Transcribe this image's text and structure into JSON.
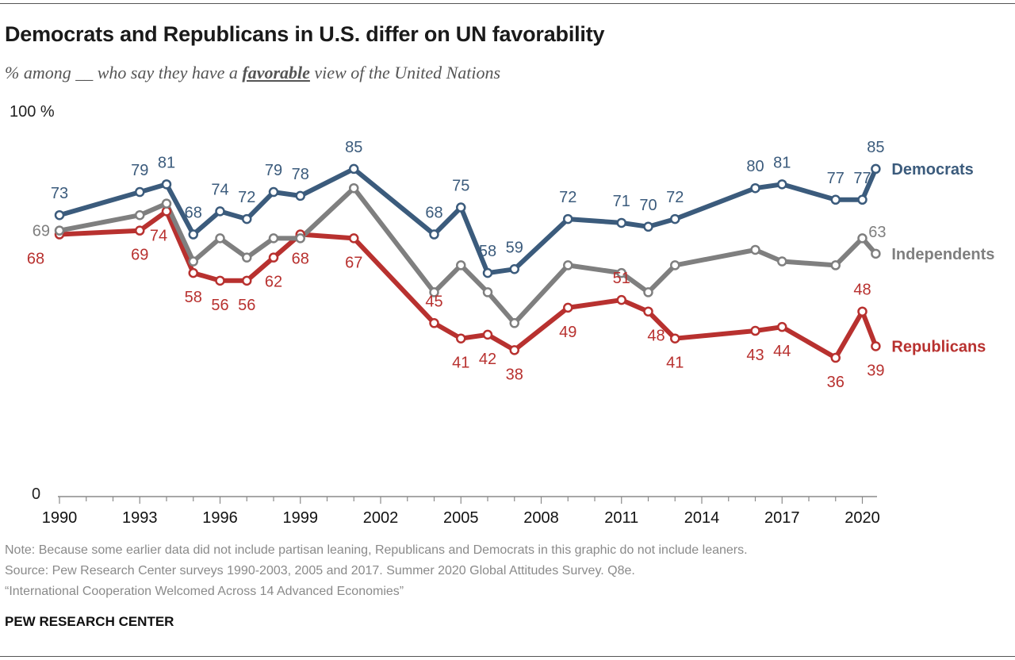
{
  "header": {
    "title": "Democrats and Republicans in U.S. differ on UN favorability",
    "subtitle_before": "% among __ who say they have a ",
    "subtitle_emphasis": "favorable",
    "subtitle_after": " view of the United Nations"
  },
  "footer": {
    "note": "Note: Because some earlier data did not include partisan leaning, Republicans and Democrats in this graphic do not include leaners.",
    "source": "Source: Pew Research Center surveys 1990-2003, 2005 and 2017. Summer 2020 Global Attitudes Survey. Q8e.",
    "report": "“International Cooperation Welcomed Across 14 Advanced Economies”",
    "brand": "PEW RESEARCH CENTER"
  },
  "chart_data": {
    "type": "line",
    "y_top_label": "100 %",
    "y_bottom_label": "0",
    "ylim": [
      0,
      100
    ],
    "xlim": [
      1990,
      2020.5
    ],
    "x_ticks": [
      1990,
      1993,
      1996,
      1999,
      2002,
      2005,
      2008,
      2011,
      2014,
      2017,
      2020
    ],
    "x_tick_labels": [
      "1990",
      "1993",
      "1996",
      "1999",
      "2002",
      "2005",
      "2008",
      "2011",
      "2014",
      "2017",
      "2020"
    ],
    "grid": false,
    "legend": "direct labels at right end of each line",
    "series": [
      {
        "name": "Democrats",
        "color": "#3b5b7c",
        "x": [
          1990,
          1993,
          1994,
          1995,
          1996,
          1997,
          1998,
          1999,
          2001,
          2004,
          2005,
          2006,
          2007,
          2009,
          2011,
          2012,
          2013,
          2016,
          2017,
          2019,
          2020,
          2020.5
        ],
        "values": [
          73,
          79,
          81,
          68,
          74,
          72,
          79,
          78,
          85,
          68,
          75,
          58,
          59,
          72,
          71,
          70,
          72,
          80,
          81,
          77,
          77,
          85
        ],
        "labels": [
          "73",
          "79",
          "81",
          "68",
          "74",
          "72",
          "79",
          "78",
          "85",
          "68",
          "75",
          "58",
          "59",
          "72",
          "71",
          "70",
          "72",
          "80",
          "81",
          "77",
          "77",
          "85"
        ]
      },
      {
        "name": "Independents",
        "color": "#7f7f7f",
        "x": [
          1990,
          1993,
          1994,
          1995,
          1996,
          1997,
          1998,
          1999,
          2001,
          2004,
          2005,
          2006,
          2007,
          2009,
          2011,
          2012,
          2013,
          2016,
          2017,
          2019,
          2020,
          2020.5
        ],
        "values": [
          69,
          73,
          76,
          61,
          67,
          62,
          67,
          67,
          80,
          53,
          60,
          53,
          45,
          60,
          58,
          53,
          60,
          64,
          61,
          60,
          67,
          63
        ],
        "labels": [
          "69",
          "",
          "",
          "",
          "",
          "",
          "",
          "",
          "",
          "",
          "",
          "",
          "",
          "",
          "",
          "",
          "",
          "",
          "",
          "",
          "",
          "63"
        ]
      },
      {
        "name": "Republicans",
        "color": "#b8312f",
        "x": [
          1990,
          1993,
          1994,
          1995,
          1996,
          1997,
          1998,
          1999,
          2001,
          2004,
          2005,
          2006,
          2007,
          2009,
          2011,
          2012,
          2013,
          2016,
          2017,
          2019,
          2020,
          2020.5
        ],
        "values": [
          68,
          69,
          74,
          58,
          56,
          56,
          62,
          68,
          67,
          45,
          41,
          42,
          38,
          49,
          51,
          48,
          41,
          43,
          44,
          36,
          48,
          39
        ],
        "labels": [
          "68",
          "69",
          "74",
          "58",
          "56",
          "56",
          "62",
          "68",
          "67",
          "45",
          "41",
          "42",
          "38",
          "49",
          "51",
          "48",
          "41",
          "43",
          "44",
          "36",
          "48",
          "39"
        ]
      }
    ]
  }
}
